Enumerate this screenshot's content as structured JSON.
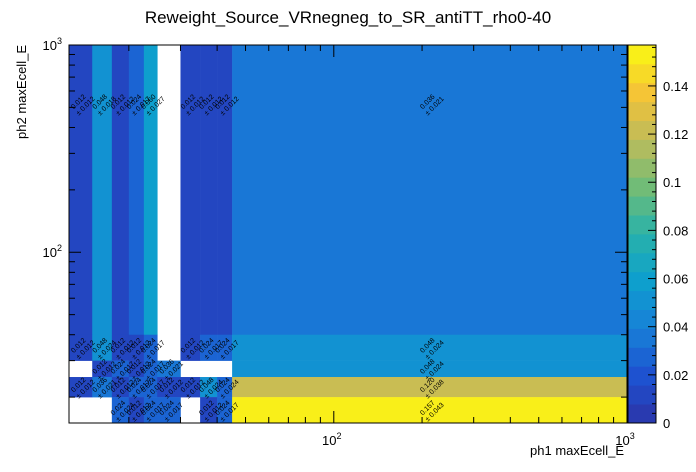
{
  "chart_data": {
    "type": "heatmap",
    "title": "Reweight_Source_VRnegneg_to_SR_antiTT_rho0-40",
    "xlabel": "ph1 maxEcell_E",
    "ylabel": "ph2 maxEcell_E",
    "x_scale": "log",
    "y_scale": "log",
    "xlim": [
      12.5,
      1000
    ],
    "ylim": [
      15,
      1000
    ],
    "x_tick_labels": [
      {
        "value": 100,
        "base": "10",
        "exp": "2"
      },
      {
        "value": 1000,
        "base": "10",
        "exp": "3"
      }
    ],
    "y_tick_labels": [
      {
        "value": 100,
        "base": "10",
        "exp": "2"
      },
      {
        "value": 1000,
        "base": "10",
        "exp": "3"
      }
    ],
    "x_edges": [
      12.5,
      15,
      17.5,
      20,
      22.5,
      25,
      30,
      35,
      40,
      45,
      1000
    ],
    "y_edges": [
      15,
      20,
      25,
      30,
      40,
      1000
    ],
    "colorbar": {
      "min": 0,
      "max": 0.157,
      "ticks": [
        0,
        0.02,
        0.04,
        0.06,
        0.08,
        0.1,
        0.12,
        0.14
      ],
      "tick_labels": [
        "0",
        "0.02",
        "0.04",
        "0.06",
        "0.08",
        "0.1",
        "0.12",
        "0.14"
      ]
    },
    "cells": [
      {
        "xi": 0,
        "yi": 4,
        "value": 0.012,
        "error": 0.012
      },
      {
        "xi": 1,
        "yi": 4,
        "value": 0.048,
        "error": 0.018
      },
      {
        "xi": 2,
        "yi": 4,
        "value": 0.012,
        "error": 0.012
      },
      {
        "xi": 3,
        "yi": 4,
        "value": 0.024,
        "error": 0.017
      },
      {
        "xi": 4,
        "yi": 4,
        "value": 0.06,
        "error": 0.027
      },
      {
        "xi": 6,
        "yi": 4,
        "value": 0.012,
        "error": 0.012
      },
      {
        "xi": 7,
        "yi": 4,
        "value": 0.012,
        "error": 0.012
      },
      {
        "xi": 8,
        "yi": 4,
        "value": 0.012,
        "error": 0.012
      },
      {
        "xi": 9,
        "yi": 4,
        "value": 0.036,
        "error": 0.021
      },
      {
        "xi": 0,
        "yi": 3,
        "value": 0.012,
        "error": 0.012
      },
      {
        "xi": 1,
        "yi": 3,
        "value": 0.048,
        "error": 0.024
      },
      {
        "xi": 2,
        "yi": 3,
        "value": 0.012,
        "error": 0.012
      },
      {
        "xi": 3,
        "yi": 3,
        "value": 0.012,
        "error": 0.012
      },
      {
        "xi": 4,
        "yi": 3,
        "value": 0.024,
        "error": 0.017
      },
      {
        "xi": 6,
        "yi": 3,
        "value": 0.012,
        "error": 0.012
      },
      {
        "xi": 7,
        "yi": 3,
        "value": 0.024,
        "error": 0.017
      },
      {
        "xi": 8,
        "yi": 3,
        "value": 0.024,
        "error": 0.017
      },
      {
        "xi": 9,
        "yi": 3,
        "value": 0.048,
        "error": 0.024
      },
      {
        "xi": 1,
        "yi": 2,
        "value": 0.012,
        "error": 0.012
      },
      {
        "xi": 2,
        "yi": 2,
        "value": 0.024,
        "error": 0.017
      },
      {
        "xi": 3,
        "yi": 2,
        "value": 0.012,
        "error": 0.012
      },
      {
        "xi": 4,
        "yi": 2,
        "value": 0.024,
        "error": 0.017
      },
      {
        "xi": 5,
        "yi": 2,
        "value": 0.036,
        "error": 0.021
      },
      {
        "xi": 9,
        "yi": 2,
        "value": 0.048,
        "error": 0.024
      },
      {
        "xi": 0,
        "yi": 1,
        "value": 0.012,
        "error": 0.012
      },
      {
        "xi": 1,
        "yi": 1,
        "value": 0.036,
        "error": 0.021
      },
      {
        "xi": 2,
        "yi": 1,
        "value": 0.012,
        "error": 0.012
      },
      {
        "xi": 3,
        "yi": 1,
        "value": 0.024,
        "error": 0.017
      },
      {
        "xi": 4,
        "yi": 1,
        "value": 0.024,
        "error": 0.017
      },
      {
        "xi": 5,
        "yi": 1,
        "value": 0.012,
        "error": 0.012
      },
      {
        "xi": 6,
        "yi": 1,
        "value": 0.012,
        "error": 0.012
      },
      {
        "xi": 7,
        "yi": 1,
        "value": 0.048,
        "error": 0.024
      },
      {
        "xi": 8,
        "yi": 1,
        "value": 0.024,
        "error": 0.024
      },
      {
        "xi": 9,
        "yi": 1,
        "value": 0.12,
        "error": 0.038
      },
      {
        "xi": 2,
        "yi": 0,
        "value": 0.024,
        "error": 0.024
      },
      {
        "xi": 3,
        "yi": 0,
        "value": 0.012,
        "error": 0.012
      },
      {
        "xi": 4,
        "yi": 0,
        "value": 0.024,
        "error": 0.017
      },
      {
        "xi": 5,
        "yi": 0,
        "value": 0.024,
        "error": 0.017
      },
      {
        "xi": 7,
        "yi": 0,
        "value": 0.012,
        "error": 0.012
      },
      {
        "xi": 8,
        "yi": 0,
        "value": 0.024,
        "error": 0.017
      },
      {
        "xi": 9,
        "yi": 0,
        "value": 0.157,
        "error": 0.043
      }
    ]
  }
}
